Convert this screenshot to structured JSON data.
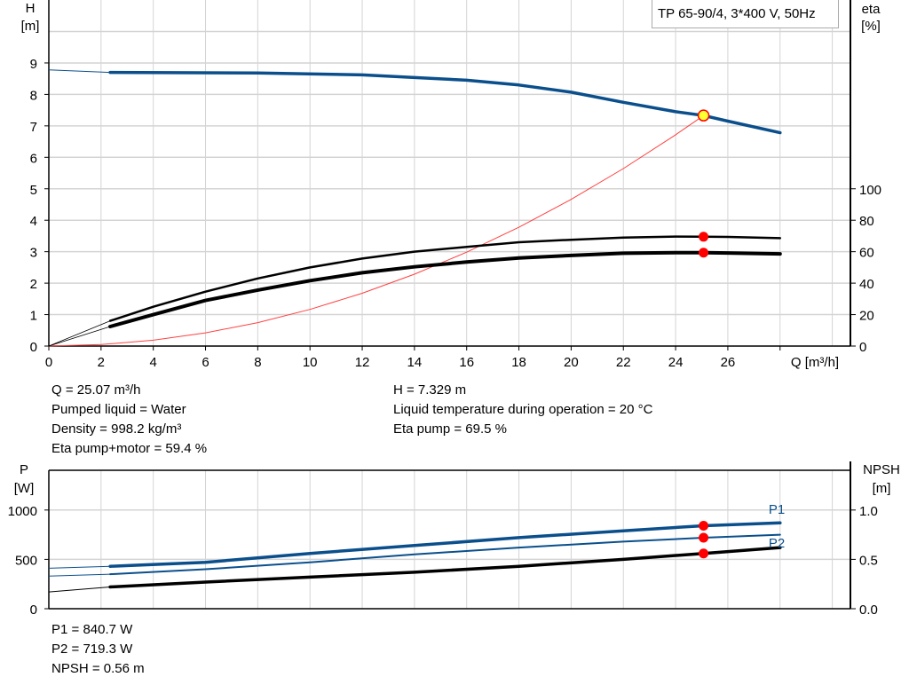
{
  "chart_data": [
    {
      "type": "line",
      "title": "TP 65-90/4, 3*400 V, 50Hz",
      "xlabel": "Q [m³/h]",
      "ylabel_left": [
        "H",
        "[m]"
      ],
      "ylabel_right": [
        "eta",
        "[%]"
      ],
      "xlim": [
        0,
        30.7
      ],
      "ylim_left": [
        0,
        11
      ],
      "ylim_right_ticks": [
        0,
        20,
        40,
        60,
        80,
        100
      ],
      "xticks": [
        "0",
        "2",
        "4",
        "6",
        "8",
        "10",
        "12",
        "14",
        "16",
        "18",
        "20",
        "22",
        "24",
        "26"
      ],
      "yticks_left": [
        "0",
        "1",
        "2",
        "3",
        "4",
        "5",
        "6",
        "7",
        "8",
        "9"
      ],
      "yticks_right": [
        "0",
        "20",
        "40",
        "60",
        "80",
        "100"
      ],
      "grid": true,
      "series": [
        {
          "axis": "H",
          "color": "#0a4f8c",
          "x": [
            0,
            2.35,
            8,
            12,
            16,
            18,
            20,
            22,
            24,
            25.07,
            26,
            28
          ],
          "y": [
            8.78,
            8.7,
            8.68,
            8.62,
            8.45,
            8.3,
            8.07,
            7.75,
            7.45,
            7.329,
            7.15,
            6.78
          ]
        },
        {
          "axis": "eta",
          "color": "#000000",
          "x": [
            0,
            2.35,
            4,
            6,
            8,
            10,
            12,
            14,
            16,
            18,
            20,
            22,
            24,
            25.07,
            26,
            28
          ],
          "y": [
            0,
            16,
            25,
            34.6,
            43,
            50,
            55.6,
            60,
            63,
            66,
            67.6,
            69,
            69.6,
            69.5,
            69.4,
            68.6
          ]
        },
        {
          "axis": "eta",
          "color": "#000000",
          "x": [
            0,
            2.35,
            4,
            6,
            8,
            10,
            12,
            14,
            16,
            18,
            20,
            22,
            24,
            25.07,
            26,
            28
          ],
          "y": [
            0,
            12.4,
            20,
            29,
            35.6,
            41.6,
            46.6,
            50.4,
            53.4,
            56,
            57.6,
            59,
            59.4,
            59.4,
            59.2,
            58.6
          ]
        },
        {
          "axis": "H",
          "color": "#ff4040",
          "type": "system-curve",
          "x": [
            0,
            2,
            4,
            6,
            8,
            10,
            12,
            14,
            16,
            18,
            20,
            22,
            24,
            25.07
          ],
          "y": [
            0,
            0.047,
            0.187,
            0.42,
            0.746,
            1.166,
            1.679,
            2.285,
            2.985,
            3.778,
            4.664,
            5.643,
            6.716,
            7.329
          ]
        }
      ],
      "operating_point": {
        "Q": 25.07,
        "H": 7.329,
        "eta_pump": 69.5,
        "eta_pump_motor": 59.4
      }
    },
    {
      "type": "line",
      "ylabel_left": [
        "P",
        "[W]"
      ],
      "ylabel_right": [
        "NPSH",
        "[m]"
      ],
      "xlim": [
        0,
        30.7
      ],
      "ylim_left": [
        0,
        1400
      ],
      "yticks_left": [
        "0",
        "500",
        "1000"
      ],
      "yticks_right": [
        "0.0",
        "0.5",
        "1.0"
      ],
      "grid": true,
      "series": [
        {
          "name": "P1",
          "axis": "P",
          "color": "#0a4f8c",
          "x": [
            0,
            2.35,
            6,
            10,
            14,
            18,
            22,
            25.07,
            28
          ],
          "y": [
            410,
            430,
            470,
            560,
            640,
            720,
            790,
            840.7,
            870
          ]
        },
        {
          "name": "P2",
          "axis": "P",
          "color": "#0a4f8c",
          "x": [
            0,
            2.35,
            6,
            10,
            14,
            18,
            22,
            25.07,
            28
          ],
          "y": [
            330,
            350,
            400,
            470,
            550,
            620,
            680,
            719.3,
            750
          ]
        },
        {
          "axis": "NPSH",
          "color": "#000000",
          "x": [
            0,
            2.35,
            6,
            10,
            14,
            18,
            22,
            25.07,
            28
          ],
          "y": [
            0.17,
            0.22,
            0.27,
            0.32,
            0.37,
            0.43,
            0.5,
            0.56,
            0.62
          ]
        }
      ]
    }
  ],
  "info_top_left": [
    "Q = 25.07 m³/h",
    "Pumped liquid = Water",
    "Density = 998.2 kg/m³",
    "Eta pump+motor = 59.4 %"
  ],
  "info_top_right": [
    "H = 7.329 m",
    "Liquid temperature during operation = 20 °C",
    "Eta pump = 69.5 %"
  ],
  "info_bottom": [
    "P1 = 840.7 W",
    "P2 = 719.3 W",
    "NPSH = 0.56 m"
  ],
  "colors": {
    "head": "#0a4f8c",
    "power": "#0a4f8c",
    "efficiency": "#000000",
    "system": "#ff4040",
    "marker": "#ff0000",
    "duty_point": "#ffff33",
    "grid": "#d4d4d4"
  }
}
